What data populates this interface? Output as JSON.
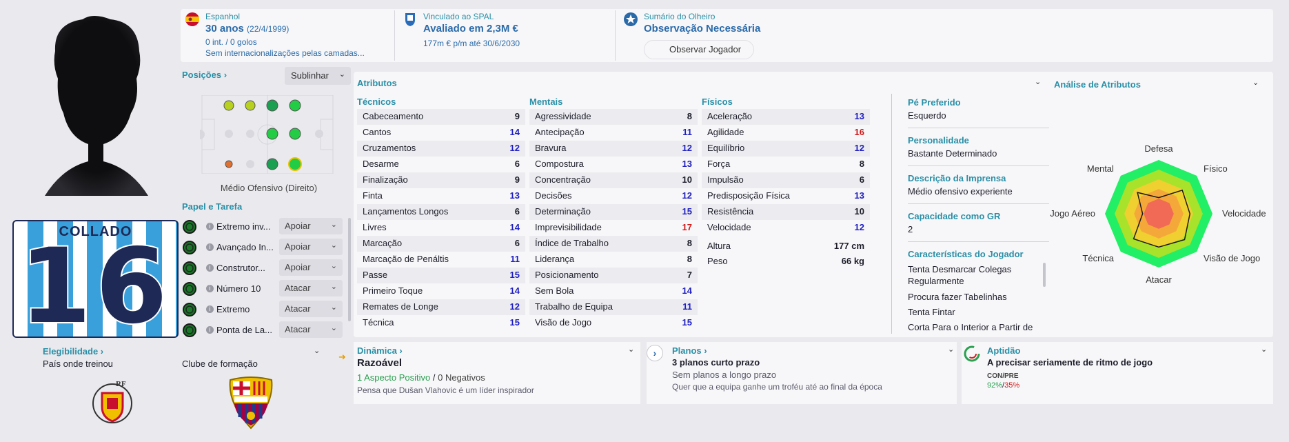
{
  "header": {
    "nationality": {
      "label": "Espanhol",
      "age": "30 anos",
      "dob": "(22/4/1999)",
      "caps": "0 int. / 0 golos",
      "youth": "Sem internacionalizações pelas camadas..."
    },
    "contract": {
      "label": "Vinculado ao SPAL",
      "value": "Avaliado em 2,3M €",
      "wage": "177m € p/m até 30/6/2030"
    },
    "scout": {
      "label": "Sumário do Olheiro",
      "value": "Observação Necessária",
      "button": "Observar Jogador"
    }
  },
  "shirt": {
    "name": "COLLADO",
    "number": "16"
  },
  "positions": {
    "title": "Posições",
    "dropdown": "Sublinhar",
    "role_label": "Médio Ofensivo (Direito)"
  },
  "roles": {
    "title": "Papel e Tarefa",
    "items": [
      {
        "name": "Extremo inv...",
        "duty": "Apoiar"
      },
      {
        "name": "Avançado In...",
        "duty": "Apoiar"
      },
      {
        "name": "Construtor...",
        "duty": "Apoiar"
      },
      {
        "name": "Número 10",
        "duty": "Atacar"
      },
      {
        "name": "Extremo",
        "duty": "Atacar"
      },
      {
        "name": "Ponta de La...",
        "duty": "Atacar"
      }
    ]
  },
  "eligibility": {
    "title": "Elegibilidade",
    "value": "País onde treinou",
    "club_label": "Clube de formação"
  },
  "attributes": {
    "title": "Atributos",
    "technical": {
      "title": "Técnicos",
      "rows": [
        {
          "name": "Cabeceamento",
          "value": "9",
          "color": "dark"
        },
        {
          "name": "Cantos",
          "value": "14",
          "color": "blue"
        },
        {
          "name": "Cruzamentos",
          "value": "12",
          "color": "blue"
        },
        {
          "name": "Desarme",
          "value": "6",
          "color": "dark"
        },
        {
          "name": "Finalização",
          "value": "9",
          "color": "dark"
        },
        {
          "name": "Finta",
          "value": "13",
          "color": "blue"
        },
        {
          "name": "Lançamentos Longos",
          "value": "6",
          "color": "dark"
        },
        {
          "name": "Livres",
          "value": "14",
          "color": "blue"
        },
        {
          "name": "Marcação",
          "value": "6",
          "color": "dark"
        },
        {
          "name": "Marcação de Penáltis",
          "value": "11",
          "color": "blue"
        },
        {
          "name": "Passe",
          "value": "15",
          "color": "blue"
        },
        {
          "name": "Primeiro Toque",
          "value": "14",
          "color": "blue"
        },
        {
          "name": "Remates de Longe",
          "value": "12",
          "color": "blue"
        },
        {
          "name": "Técnica",
          "value": "15",
          "color": "blue"
        }
      ]
    },
    "mental": {
      "title": "Mentais",
      "rows": [
        {
          "name": "Agressividade",
          "value": "8",
          "color": "dark"
        },
        {
          "name": "Antecipação",
          "value": "11",
          "color": "blue"
        },
        {
          "name": "Bravura",
          "value": "12",
          "color": "blue"
        },
        {
          "name": "Compostura",
          "value": "13",
          "color": "blue"
        },
        {
          "name": "Concentração",
          "value": "10",
          "color": "dark"
        },
        {
          "name": "Decisões",
          "value": "12",
          "color": "blue"
        },
        {
          "name": "Determinação",
          "value": "15",
          "color": "blue"
        },
        {
          "name": "Imprevisibilidade",
          "value": "17",
          "color": "red"
        },
        {
          "name": "Índice de Trabalho",
          "value": "8",
          "color": "dark"
        },
        {
          "name": "Liderança",
          "value": "8",
          "color": "dark"
        },
        {
          "name": "Posicionamento",
          "value": "7",
          "color": "dark"
        },
        {
          "name": "Sem Bola",
          "value": "14",
          "color": "blue"
        },
        {
          "name": "Trabalho de Equipa",
          "value": "11",
          "color": "blue"
        },
        {
          "name": "Visão de Jogo",
          "value": "15",
          "color": "blue"
        }
      ]
    },
    "physical": {
      "title": "Físicos",
      "rows": [
        {
          "name": "Aceleração",
          "value": "13",
          "color": "blue"
        },
        {
          "name": "Agilidade",
          "value": "16",
          "color": "red"
        },
        {
          "name": "Equilíbrio",
          "value": "12",
          "color": "blue"
        },
        {
          "name": "Força",
          "value": "8",
          "color": "dark"
        },
        {
          "name": "Impulsão",
          "value": "6",
          "color": "dark"
        },
        {
          "name": "Predisposição Física",
          "value": "13",
          "color": "blue"
        },
        {
          "name": "Resistência",
          "value": "10",
          "color": "dark"
        },
        {
          "name": "Velocidade",
          "value": "12",
          "color": "blue"
        }
      ],
      "height_label": "Altura",
      "height": "177 cm",
      "weight_label": "Peso",
      "weight": "66 kg"
    }
  },
  "details": {
    "foot_title": "Pé Preferido",
    "foot": "Esquerdo",
    "personality_title": "Personalidade",
    "personality": "Bastante Determinado",
    "press_title": "Descrição da Imprensa",
    "press": "Médio ofensivo experiente",
    "gk_title": "Capacidade como GR",
    "gk": "2",
    "traits_title": "Características do Jogador",
    "traits": [
      "Tenta Desmarcar Colegas",
      "Regularmente",
      "Procura fazer Tabelinhas",
      "Tenta Fintar",
      "Corta Para o Interior a Partir de"
    ]
  },
  "analysis": {
    "title": "Análise de Atributos",
    "labels": [
      "Defesa",
      "Físico",
      "Velocidade",
      "Visão de Jogo",
      "Atacar",
      "Técnica",
      "Jogo Aéreo",
      "Mental"
    ],
    "values": [
      0.3,
      0.62,
      0.58,
      0.68,
      0.62,
      0.66,
      0.3,
      0.56
    ]
  },
  "dynamics": {
    "title": "Dinâmica",
    "value": "Razoável",
    "positive": "1 Aspecto Positivo",
    "sep": "/",
    "negative": "0 Negativos",
    "note": "Pensa que Dušan Vlahovic é um líder inspirador"
  },
  "plans": {
    "title": "Planos",
    "value": "3 planos curto prazo",
    "long": "Sem planos a longo prazo",
    "note": "Quer que a equipa ganhe um troféu até ao final da época"
  },
  "fitness": {
    "title": "Aptidão",
    "value": "A precisar seriamente de ritmo de jogo",
    "label": "CON/PRE",
    "con": "92%",
    "sep": "/",
    "pre": "35%"
  }
}
